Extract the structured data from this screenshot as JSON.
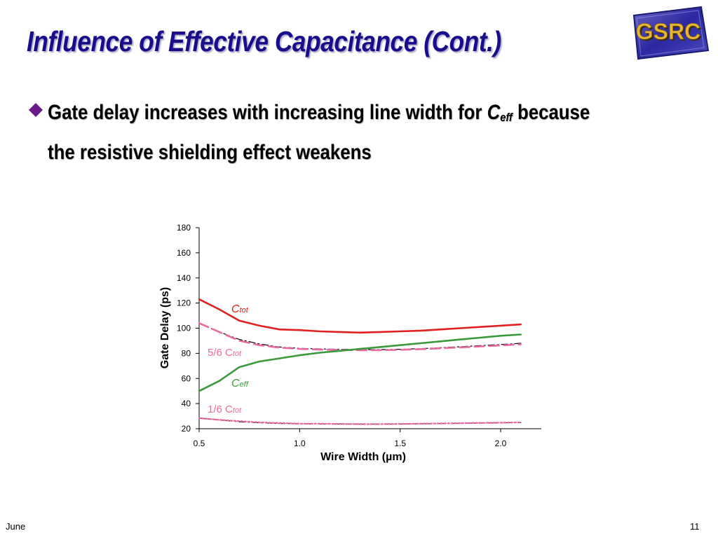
{
  "slide": {
    "title": "Influence of Effective Capacitance (Cont.)",
    "logo_text": "GSRC",
    "bullet": {
      "text_before": "Gate delay increases with increasing line width for ",
      "c_letter": "C",
      "c_sub": "eff",
      "text_after": " because the resistive shielding effect weakens"
    },
    "footer_left": "June",
    "page_number": "11"
  },
  "colors": {
    "title": "#1a0d8c",
    "bullet": "#6a1a8a",
    "ctot": "#e0201e",
    "ceff": "#3a9a3a",
    "fraction": "#ea6aa0",
    "reference": "#000000"
  },
  "chart_data": {
    "type": "line",
    "title": "",
    "xlabel": "Wire Width (µm)",
    "ylabel": "Gate Delay (ps)",
    "xlim": [
      0.5,
      2.2
    ],
    "ylim": [
      20,
      180
    ],
    "xticks": [
      0.5,
      1.0,
      1.5,
      2.0
    ],
    "xtick_labels": [
      "0.5",
      "1.0",
      "1.5",
      "2.0"
    ],
    "yticks": [
      20,
      40,
      60,
      80,
      100,
      120,
      140,
      160,
      180
    ],
    "ytick_labels": [
      "20",
      "40",
      "60",
      "80",
      "100",
      "120",
      "140",
      "160",
      "180"
    ],
    "grid": false,
    "legend": "none",
    "series": [
      {
        "key": "ctot",
        "label_main": "C",
        "label_sub": "tot",
        "color": "#e0201e",
        "style": "solid",
        "x": [
          0.5,
          0.6,
          0.7,
          0.8,
          0.9,
          1.0,
          1.1,
          1.2,
          1.3,
          1.4,
          1.5,
          1.6,
          1.7,
          1.8,
          1.9,
          2.0,
          2.1
        ],
        "y": [
          123,
          115,
          106,
          102,
          99,
          98.5,
          97.5,
          97,
          96.5,
          97,
          97.5,
          98,
          99,
          100,
          101,
          102,
          103
        ]
      },
      {
        "key": "ctot56",
        "label_main": "5/6 C",
        "label_sub": "tot",
        "color": "#ea6aa0",
        "style": "dashed",
        "x": [
          0.5,
          0.6,
          0.7,
          0.8,
          0.9,
          1.0,
          1.1,
          1.2,
          1.3,
          1.4,
          1.5,
          1.6,
          1.7,
          1.8,
          1.9,
          2.0,
          2.1
        ],
        "y": [
          104,
          97,
          90,
          86.5,
          84.5,
          83.5,
          83,
          82.7,
          82.5,
          82.5,
          82.8,
          83.3,
          84,
          84.7,
          85.5,
          86.3,
          87.2
        ]
      },
      {
        "key": "ceff",
        "label_main": "C",
        "label_sub": "eff",
        "color": "#3a9a3a",
        "style": "solid",
        "x": [
          0.5,
          0.6,
          0.7,
          0.8,
          0.9,
          1.0,
          1.1,
          1.2,
          1.3,
          1.4,
          1.5,
          1.6,
          1.7,
          1.8,
          1.9,
          2.0,
          2.1
        ],
        "y": [
          50,
          58,
          69,
          73.5,
          76,
          78.5,
          80.5,
          82,
          83.5,
          85,
          86.5,
          88,
          89.5,
          91,
          92.5,
          94,
          95
        ]
      },
      {
        "key": "ctot16",
        "label_main": "1/6 C",
        "label_sub": "tot",
        "color": "#ea6aa0",
        "style": "dotted",
        "x": [
          0.5,
          0.6,
          0.7,
          0.8,
          0.9,
          1.0,
          1.1,
          1.2,
          1.3,
          1.4,
          1.5,
          1.6,
          1.7,
          1.8,
          1.9,
          2.0,
          2.1
        ],
        "y": [
          28.5,
          27,
          26,
          25,
          24.5,
          24,
          24,
          23.8,
          23.7,
          23.7,
          23.8,
          24,
          24.2,
          24.4,
          24.6,
          24.8,
          25
        ]
      },
      {
        "key": "ref56",
        "color": "#000000",
        "style": "dashdot",
        "x": [
          0.5,
          0.6,
          0.7,
          0.8,
          0.9,
          1.0,
          1.1,
          1.2,
          1.3,
          1.4,
          1.5,
          1.6,
          1.7,
          1.8,
          1.9,
          2.0,
          2.1
        ],
        "y": [
          104,
          97,
          91,
          87.5,
          85,
          84,
          83.5,
          83.2,
          83,
          83,
          83.2,
          83.7,
          84.5,
          85.3,
          86.2,
          87,
          88
        ]
      },
      {
        "key": "ref16",
        "color": "#000000",
        "style": "dashdot",
        "x": [
          0.5,
          0.6,
          0.7,
          0.8,
          0.9,
          1.0,
          1.1,
          1.2,
          1.3,
          1.4,
          1.5,
          1.6,
          1.7,
          1.8,
          1.9,
          2.0,
          2.1
        ],
        "y": [
          28.5,
          27,
          25.5,
          24.7,
          24.2,
          23.9,
          23.8,
          23.7,
          23.6,
          23.6,
          23.7,
          23.9,
          24.1,
          24.3,
          24.5,
          24.7,
          24.9
        ]
      }
    ]
  }
}
